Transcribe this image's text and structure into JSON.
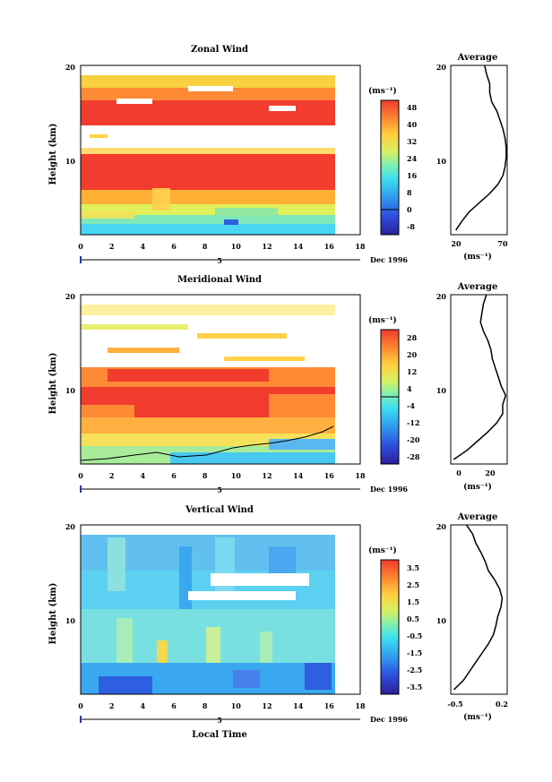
{
  "xlabel": "Local Time",
  "date_label": "Dec 1996",
  "day_label": "5",
  "average_title": "Average",
  "ylabel": "Height (km)",
  "unit": "(ms⁻¹)",
  "chart_data": [
    {
      "type": "heatmap",
      "title": "Zonal Wind",
      "xlabel": "Local Time",
      "ylabel": "Height (km)",
      "xlim": [
        0,
        18
      ],
      "ylim": [
        1.5,
        20
      ],
      "x_ticks": [
        "0",
        "2",
        "4",
        "6",
        "8",
        "10",
        "12",
        "14",
        "16",
        "18"
      ],
      "y_ticks": [
        "10",
        "20"
      ],
      "data_x_range": [
        0,
        16.2
      ],
      "colorbar": {
        "unit": "(ms⁻¹)",
        "ticks": [
          "48",
          "40",
          "32",
          "24",
          "16",
          "8",
          "0",
          "-8"
        ],
        "min": -12,
        "max": 52
      },
      "profile": {
        "title": "Average",
        "xlabel": "(ms⁻¹)",
        "xlim": [
          17,
          72
        ],
        "x_ticks": [
          "20",
          "70"
        ],
        "y_ticks": [
          "10",
          "20"
        ],
        "heights": [
          2,
          3,
          4,
          5,
          6,
          7,
          8,
          9,
          10,
          11,
          12,
          13,
          14,
          15,
          16,
          17,
          18,
          19,
          20
        ],
        "values": [
          22,
          28,
          35,
          45,
          55,
          63,
          68,
          70,
          71,
          71,
          70,
          68,
          65,
          62,
          57,
          55,
          55,
          52,
          50
        ]
      },
      "approx_rows": [
        {
          "height": 2.5,
          "value": 12
        },
        {
          "height": 4,
          "value": 22
        },
        {
          "height": 6,
          "value": 34
        },
        {
          "height": 8,
          "value": 48
        },
        {
          "height": 10,
          "value": 52
        },
        {
          "height": 12,
          "value": 46
        },
        {
          "height": 14,
          "value": 52
        },
        {
          "height": 16,
          "value": 47
        },
        {
          "height": 18.5,
          "value": 32
        }
      ]
    },
    {
      "type": "heatmap",
      "title": "Meridional Wind",
      "xlabel": "Local Time",
      "ylabel": "Height (km)",
      "xlim": [
        0,
        18
      ],
      "ylim": [
        1.5,
        20
      ],
      "x_ticks": [
        "0",
        "2",
        "4",
        "6",
        "8",
        "10",
        "12",
        "14",
        "16",
        "18"
      ],
      "y_ticks": [
        "10",
        "20"
      ],
      "data_x_range": [
        0,
        16.2
      ],
      "colorbar": {
        "unit": "(ms⁻¹)",
        "ticks": [
          "28",
          "20",
          "12",
          "4",
          "-4",
          "-12",
          "-20",
          "-28"
        ],
        "min": -32,
        "max": 32
      },
      "profile": {
        "title": "Average",
        "xlabel": "(ms⁻¹)",
        "xlim": [
          -8,
          30
        ],
        "x_ticks": [
          "0",
          "20"
        ],
        "y_ticks": [
          "10",
          "20"
        ],
        "heights": [
          2,
          3,
          4,
          5,
          6,
          7,
          8,
          9,
          10,
          11,
          12,
          13,
          14,
          15,
          16,
          17,
          18,
          19,
          20
        ],
        "values": [
          -6,
          3,
          10,
          17,
          23,
          27,
          27,
          29,
          26,
          24,
          22,
          20,
          19,
          17,
          14,
          12,
          13,
          14,
          16
        ]
      },
      "approx_rows": [
        {
          "height": 2.5,
          "value": -6
        },
        {
          "height": 4,
          "value": 16
        },
        {
          "height": 6,
          "value": 28
        },
        {
          "height": 8,
          "value": 32
        },
        {
          "height": 10,
          "value": 30
        },
        {
          "height": 12,
          "value": 26
        },
        {
          "height": 14,
          "value": 14
        },
        {
          "height": 17,
          "value": 10
        },
        {
          "height": 19,
          "value": 14
        }
      ]
    },
    {
      "type": "heatmap",
      "title": "Vertical Wind",
      "xlabel": "Local Time",
      "ylabel": "Height (km)",
      "xlim": [
        0,
        18
      ],
      "ylim": [
        1.5,
        20
      ],
      "x_ticks": [
        "0",
        "2",
        "4",
        "6",
        "8",
        "10",
        "12",
        "14",
        "16",
        "18"
      ],
      "y_ticks": [
        "10",
        "20"
      ],
      "data_x_range": [
        0,
        16.2
      ],
      "colorbar": {
        "unit": "(ms⁻¹)",
        "ticks": [
          "3.5",
          "2.5",
          "1.5",
          "0.5",
          "-0.5",
          "-1.5",
          "-2.5",
          "-3.5"
        ],
        "min": -4,
        "max": 4
      },
      "profile": {
        "title": "Average",
        "xlabel": "(ms⁻¹)",
        "xlim": [
          -0.6,
          0.3
        ],
        "x_ticks": [
          "-0.5",
          "0.2"
        ],
        "y_ticks": [
          "10",
          "20"
        ],
        "heights": [
          2,
          3,
          4,
          5,
          6,
          7,
          8,
          9,
          10,
          11,
          12,
          13,
          14,
          15,
          16,
          17,
          18,
          19,
          20
        ],
        "values": [
          -0.55,
          -0.4,
          -0.3,
          -0.2,
          -0.1,
          0.0,
          0.08,
          0.12,
          0.15,
          0.2,
          0.22,
          0.18,
          0.1,
          0.0,
          -0.05,
          -0.12,
          -0.2,
          -0.25,
          -0.35
        ]
      },
      "approx_rows": [
        {
          "height": 2.5,
          "value": -1.2
        },
        {
          "height": 5,
          "value": 0.2
        },
        {
          "height": 8,
          "value": 0.0
        },
        {
          "height": 11,
          "value": -0.3
        },
        {
          "height": 14,
          "value": -0.6
        },
        {
          "height": 17,
          "value": -0.8
        },
        {
          "height": 19,
          "value": -0.5
        }
      ]
    }
  ]
}
